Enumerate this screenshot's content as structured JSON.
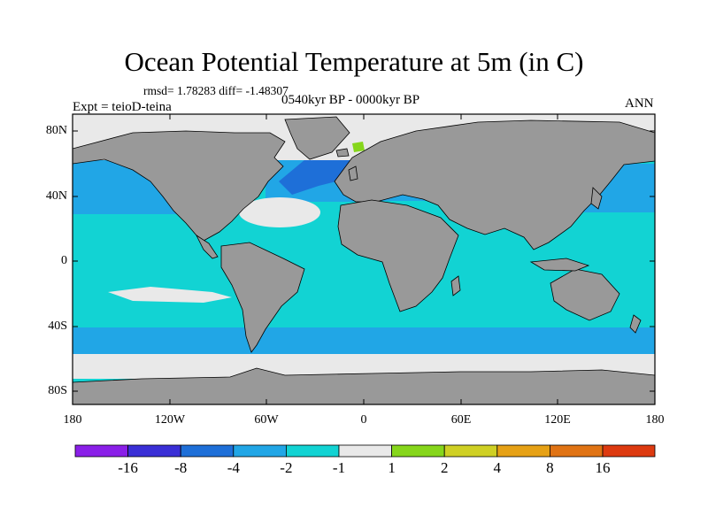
{
  "title": "Ocean Potential Temperature at 5m (in C)",
  "stats": "rmsd= 1.78283 diff= -1.48307",
  "experiment": "Expt = teioD-teina",
  "period": "0540kyr BP - 0000kyr BP",
  "season": "ANN",
  "lat_ticks": [
    "80N",
    "40N",
    "0",
    "40S",
    "80S"
  ],
  "lon_ticks": [
    "180",
    "120W",
    "60W",
    "0",
    "60E",
    "120E",
    "180"
  ],
  "colorbar": {
    "labels": [
      "-16",
      "-8",
      "-4",
      "-2",
      "-1",
      "1",
      "2",
      "4",
      "8",
      "16"
    ],
    "colors": [
      "#8a1fe8",
      "#3a2fd6",
      "#1e6fd8",
      "#21a6e6",
      "#12d3d3",
      "#e9e9e9",
      "#86d61b",
      "#cfd024",
      "#e6a115",
      "#e07314",
      "#dd3a10"
    ]
  },
  "colors": {
    "land": "#999999",
    "ocean_main": "#12d3d3",
    "ocean_cool": "#21a6e6",
    "ocean_cold": "#1e6fd8",
    "neutral": "#e9e9e9",
    "warm": "#86d61b"
  }
}
